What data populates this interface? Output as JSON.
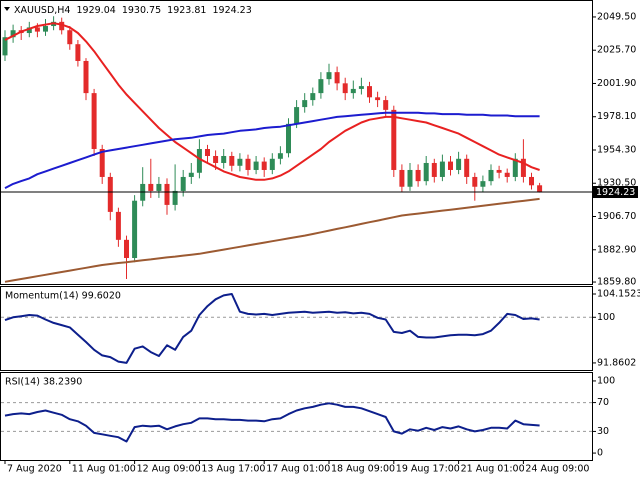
{
  "chart_data": [
    {
      "type": "candlestick",
      "title": "XAUUSD,H4",
      "categories": [
        "7 Aug 2020",
        null,
        null,
        null,
        null,
        null,
        null,
        null,
        "11 Aug 01:00",
        null,
        null,
        null,
        null,
        null,
        null,
        null,
        "12 Aug 09:00",
        null,
        null,
        null,
        null,
        null,
        null,
        null,
        "13 Aug 17:00",
        null,
        null,
        null,
        null,
        null,
        null,
        null,
        "17 Aug 01:00",
        null,
        null,
        null,
        null,
        null,
        null,
        null,
        "18 Aug 09:00",
        null,
        null,
        null,
        null,
        null,
        null,
        null,
        "19 Aug 17:00",
        null,
        null,
        null,
        null,
        null,
        null,
        null,
        "21 Aug 01:00",
        null,
        null,
        null,
        null,
        null,
        null,
        null,
        "24 Aug 09:00",
        null,
        null
      ],
      "open": [
        2022,
        2035,
        2040,
        2038,
        2042,
        2039,
        2043,
        2046,
        2040,
        2030,
        2018,
        1995,
        1955,
        1935,
        1910,
        1890,
        1877,
        1918,
        1930,
        1925,
        1930,
        1915,
        1925,
        1935,
        1938,
        1955,
        1950,
        1945,
        1950,
        1943,
        1948,
        1940,
        1946,
        1940,
        1948,
        1952,
        1973,
        1985,
        1990,
        1995,
        2005,
        2010,
        2002,
        1995,
        1998,
        2000,
        1992,
        1990,
        1983,
        1940,
        1928,
        1940,
        1932,
        1945,
        1935,
        1946,
        1940,
        1948,
        1935,
        1928,
        1932,
        1940,
        1938,
        1935,
        1948,
        1935,
        1929.04
      ],
      "high": [
        2040,
        2044,
        2043,
        2046,
        2045,
        2048,
        2050,
        2049,
        2043,
        2033,
        2020,
        1998,
        1958,
        1938,
        1913,
        1893,
        1922,
        1942,
        1948,
        1935,
        1934,
        1944,
        1940,
        1945,
        1962,
        1958,
        1954,
        1955,
        1953,
        1952,
        1951,
        1950,
        1949,
        1952,
        1957,
        1977,
        1990,
        1995,
        1999,
        2010,
        2016,
        2014,
        2006,
        2004,
        2006,
        2003,
        1996,
        1993,
        1986,
        1944,
        1945,
        1944,
        1950,
        1948,
        1951,
        1950,
        1953,
        1951,
        1938,
        1936,
        1944,
        1943,
        1941,
        1952,
        1962,
        1938,
        1930.75
      ],
      "low": [
        2018,
        2031,
        2033,
        2035,
        2035,
        2036,
        2040,
        2037,
        2026,
        2014,
        1990,
        1950,
        1930,
        1904,
        1885,
        1862,
        1874,
        1914,
        1920,
        1920,
        1908,
        1911,
        1921,
        1930,
        1934,
        1945,
        1940,
        1941,
        1939,
        1939,
        1936,
        1937,
        1935,
        1937,
        1944,
        1949,
        1970,
        1981,
        1986,
        1991,
        2001,
        1997,
        1990,
        1991,
        1994,
        1988,
        1985,
        1978,
        1935,
        1924,
        1925,
        1928,
        1929,
        1931,
        1932,
        1936,
        1937,
        1930,
        1918,
        1924,
        1929,
        1934,
        1931,
        1932,
        1931,
        1926,
        1923.81
      ],
      "close": [
        2035,
        2040,
        2038,
        2042,
        2039,
        2043,
        2046,
        2040,
        2030,
        2018,
        1995,
        1955,
        1935,
        1910,
        1890,
        1877,
        1918,
        1930,
        1925,
        1930,
        1915,
        1925,
        1935,
        1938,
        1955,
        1950,
        1945,
        1950,
        1943,
        1948,
        1940,
        1946,
        1940,
        1948,
        1952,
        1973,
        1985,
        1990,
        1995,
        2005,
        2010,
        2002,
        1995,
        1998,
        2000,
        1992,
        1990,
        1983,
        1940,
        1928,
        1940,
        1932,
        1945,
        1935,
        1946,
        1940,
        1948,
        1935,
        1928,
        1932,
        1940,
        1938,
        1935,
        1948,
        1935,
        1929.04,
        1924.23
      ],
      "up_color": "#2e8b57",
      "down_color": "#e32b2b",
      "series": [
        {
          "color": "#e82121",
          "values": [
            2033,
            2036,
            2039,
            2041,
            2043,
            2044,
            2045,
            2044,
            2042,
            2038,
            2032,
            2025,
            2017,
            2009,
            2001,
            1994,
            1988,
            1982,
            1976,
            1970,
            1965,
            1960,
            1956,
            1952,
            1948,
            1945,
            1942,
            1939,
            1937,
            1935,
            1934,
            1933,
            1933,
            1934,
            1936,
            1939,
            1943,
            1947,
            1951,
            1955,
            1960,
            1964,
            1968,
            1971,
            1974,
            1976,
            1977,
            1978,
            1978,
            1977,
            1976,
            1975,
            1974,
            1972,
            1970,
            1968,
            1966,
            1963,
            1960,
            1957,
            1954,
            1951,
            1949,
            1947,
            1945,
            1942,
            1940
          ]
        },
        {
          "color": "#1c1ccf",
          "values": [
            1927,
            1930,
            1932,
            1934,
            1937,
            1939,
            1941,
            1943,
            1945,
            1947,
            1949,
            1951,
            1953,
            1954,
            1955,
            1956,
            1957,
            1958,
            1959,
            1960,
            1961,
            1962,
            1962.5,
            1963,
            1964,
            1965,
            1965.5,
            1966,
            1967,
            1968,
            1968.5,
            1969,
            1970,
            1970.5,
            1971,
            1972,
            1973,
            1974,
            1975,
            1976,
            1977,
            1978,
            1978.5,
            1979,
            1979.5,
            1980,
            1980.5,
            1981,
            1981,
            1981,
            1981,
            1981,
            1980.5,
            1980.5,
            1980,
            1980,
            1980,
            1979.5,
            1979.5,
            1979.5,
            1979,
            1979,
            1979,
            1978.5,
            1978.5,
            1978.5,
            1978.5
          ]
        },
        {
          "color": "#9c5a32",
          "values": [
            1860,
            1861,
            1862,
            1863,
            1864,
            1865,
            1866,
            1867,
            1868,
            1869,
            1870,
            1871,
            1872,
            1872.7,
            1873.4,
            1874,
            1874.7,
            1875.4,
            1876,
            1876.7,
            1877.4,
            1878,
            1878.7,
            1879.4,
            1880,
            1881,
            1882,
            1883,
            1884,
            1885,
            1886,
            1887,
            1888,
            1889,
            1890,
            1891,
            1892,
            1893,
            1894.2,
            1895.4,
            1896.6,
            1897.8,
            1899,
            1900.2,
            1901.4,
            1902.6,
            1903.8,
            1905,
            1906.2,
            1907.4,
            1908.1,
            1908.8,
            1909.5,
            1910.2,
            1910.9,
            1911.6,
            1912.3,
            1913,
            1913.7,
            1914.4,
            1915.1,
            1915.8,
            1916.5,
            1917.2,
            1917.9,
            1918.6,
            1919.3
          ]
        }
      ],
      "ylim": [
        1858.4,
        2060.2
      ],
      "yticks": [
        {
          "value": 1859.8,
          "label": "1859.80"
        },
        {
          "value": 1882.9,
          "label": "1882.90"
        },
        {
          "value": 1906.7,
          "label": "1906.70"
        },
        {
          "value": 1930.5,
          "label": "1930.50"
        },
        {
          "value": 1954.3,
          "label": "1954.30"
        },
        {
          "value": 1978.1,
          "label": "1978.10"
        },
        {
          "value": 2001.9,
          "label": "2001.90"
        },
        {
          "value": 2025.7,
          "label": "2025.70"
        },
        {
          "value": 2049.5,
          "label": "2049.50"
        }
      ]
    },
    {
      "type": "line",
      "title": "Momentum(14) 99.6020",
      "color": "#0d1f8c",
      "values": [
        99.5,
        100,
        100.2,
        100.4,
        100.3,
        99.6,
        99.0,
        98.6,
        98.2,
        96.9,
        95.6,
        94.2,
        93.2,
        92.9,
        92.1,
        91.8602,
        94.4,
        94.8,
        93.8,
        93.1,
        95.0,
        94.2,
        96.5,
        97.6,
        100.4,
        102.0,
        103.2,
        103.9,
        104.1523,
        101.0,
        100.6,
        100.5,
        100.6,
        100.4,
        100.6,
        100.8,
        100.9,
        101.0,
        100.8,
        100.9,
        101.0,
        100.8,
        100.9,
        100.7,
        100.8,
        100.6,
        99.9,
        99.6,
        97.4,
        97.2,
        97.6,
        96.5,
        96.4,
        96.4,
        96.6,
        96.8,
        96.9,
        96.9,
        96.8,
        97.0,
        97.6,
        99.0,
        100.6,
        100.4,
        99.7,
        99.8,
        99.602
      ],
      "ylim": [
        90.6,
        105.4
      ],
      "yticks": [
        91.8602,
        100,
        104.1523
      ],
      "levels": [
        100
      ]
    },
    {
      "type": "line",
      "title": "RSI(14) 38.2390",
      "color": "#0d1f8c",
      "values": [
        52,
        54,
        55,
        54,
        57,
        59,
        56,
        53,
        47,
        44,
        38,
        28,
        26,
        24,
        22,
        16,
        36,
        38,
        37,
        38,
        33,
        37,
        40,
        42,
        48,
        48,
        47,
        47,
        46,
        46,
        45,
        45,
        44,
        47,
        48,
        54,
        59,
        62,
        64,
        67,
        69,
        67,
        64,
        64,
        62,
        58,
        54,
        50,
        30,
        27,
        33,
        31,
        35,
        32,
        36,
        34,
        37,
        33,
        30,
        32,
        35,
        35,
        34,
        45,
        40,
        39,
        38.239
      ],
      "ylim": [
        -9.6,
        111
      ],
      "yticks": [
        0,
        30,
        70,
        100
      ],
      "levels": [
        30,
        70
      ]
    }
  ]
}
